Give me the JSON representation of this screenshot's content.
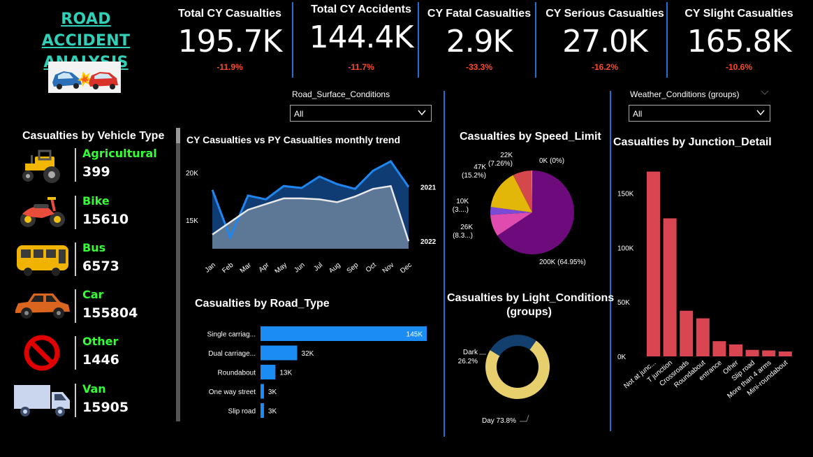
{
  "dashboard": {
    "title_line1": "ROAD ACCIDENT",
    "title_line2": "ANALYSIS"
  },
  "kpis": [
    {
      "label": "Total CY Casualties",
      "value": "195.7K",
      "change": "-11.9%"
    },
    {
      "label": "Total CY Accidents",
      "value": "144.4K",
      "change": "-11.7%"
    },
    {
      "label": "CY Fatal Casualties",
      "value": "2.9K",
      "change": "-33.3%"
    },
    {
      "label": "CY Serious Casualties",
      "value": "27.0K",
      "change": "-16.2%"
    },
    {
      "label": "CY Slight Casualties",
      "value": "165.8K",
      "change": "-10.6%"
    }
  ],
  "slicers": {
    "road_surface": {
      "label": "Road_Surface_Conditions",
      "value": "All"
    },
    "weather": {
      "label": "Weather_Conditions (groups)",
      "value": "All"
    }
  },
  "vehicles": {
    "title": "Casualties by Vehicle Type",
    "items": [
      {
        "name": "Agricultural",
        "value": "399",
        "icon": "tractor-icon"
      },
      {
        "name": "Bike",
        "value": "15610",
        "icon": "motorbike-icon"
      },
      {
        "name": "Bus",
        "value": "6573",
        "icon": "bus-icon"
      },
      {
        "name": "Car",
        "value": "155804",
        "icon": "car-icon"
      },
      {
        "name": "Other",
        "value": "1446",
        "icon": "prohibited-icon"
      },
      {
        "name": "Van",
        "value": "15905",
        "icon": "van-icon"
      }
    ]
  },
  "colors": {
    "accent_blue": "#1f6fd6",
    "title_teal": "#2fd2b8",
    "negative": "#ff4a2a",
    "vehicle_name": "#33ff33",
    "bar_blue": "#1b8cf3",
    "junction_red": "#d94550",
    "purple": "#6d0b7c",
    "pink": "#e04bb0",
    "violet": "#7a4cd6",
    "yellow": "#e2b70a",
    "coral": "#d4474b",
    "donut_day": "#e7cf6d",
    "donut_dark": "#123f6d"
  },
  "chart_data": [
    {
      "id": "trend",
      "type": "area",
      "title": "CY Casualties vs PY Casualties monthly trend",
      "categories": [
        "Jan",
        "Feb",
        "Mar",
        "Apr",
        "May",
        "Jun",
        "Jul",
        "Aug",
        "Sep",
        "Oct",
        "Nov",
        "Dec"
      ],
      "series": [
        {
          "name": "2021",
          "values": [
            18200,
            13200,
            17600,
            17200,
            18600,
            18400,
            19600,
            18800,
            18300,
            20200,
            21200,
            18500
          ]
        },
        {
          "name": "2022",
          "values": [
            13500,
            14800,
            16100,
            16700,
            17300,
            17300,
            17200,
            16900,
            17500,
            18300,
            18600,
            12800
          ]
        }
      ],
      "yticks": [
        "20K",
        "15K"
      ],
      "ytick_values": [
        20000,
        15000
      ],
      "ylim": [
        12000,
        22000
      ]
    },
    {
      "id": "speed",
      "type": "pie",
      "title": "Casualties by Speed_Limit",
      "slices": [
        {
          "value": 64.95,
          "label": "200K (64.95%)"
        },
        {
          "value": 8.3,
          "label": "26K (8.3...)"
        },
        {
          "value": 3.0,
          "label": "10K (3....)"
        },
        {
          "value": 15.2,
          "label": "47K (15.2%)"
        },
        {
          "value": 7.26,
          "label": "22K (7.26%)"
        },
        {
          "value": 0.2,
          "label": "0K (0%)"
        }
      ]
    },
    {
      "id": "junction",
      "type": "bar",
      "title": "Casualties by Junction_Detail",
      "categories": [
        "Not at junc...",
        "T junction",
        "Crossroads",
        "Roundabout",
        "entrance",
        "Other",
        "Slip road",
        "More than 4 arms",
        "Mini-roundabout"
      ],
      "values": [
        170000,
        127000,
        42000,
        35000,
        14000,
        11000,
        6000,
        5500,
        4500
      ],
      "yticks": [
        "150K",
        "100K",
        "50K",
        "0K"
      ],
      "ytick_values": [
        150000,
        100000,
        50000,
        0
      ],
      "ylim": [
        0,
        180000
      ]
    },
    {
      "id": "road",
      "type": "bar",
      "title": "Casualties by Road_Type",
      "categories": [
        "Single carriag...",
        "Dual carriage...",
        "Roundabout",
        "One way street",
        "Slip road"
      ],
      "values": [
        145,
        32,
        13,
        3,
        3
      ],
      "labels": [
        "145K",
        "32K",
        "13K",
        "3K",
        "3K"
      ],
      "xlim": [
        0,
        145
      ]
    },
    {
      "id": "light",
      "type": "pie",
      "title_line1": "Casualties by Light_Conditions",
      "title_line2": "(groups)",
      "slices": [
        {
          "name": "Day",
          "value": 73.8,
          "label": "Day 73.8%"
        },
        {
          "name": "Dark",
          "value": 26.2,
          "label_name": "Dark",
          "label_pct": "26.2%"
        }
      ]
    }
  ]
}
